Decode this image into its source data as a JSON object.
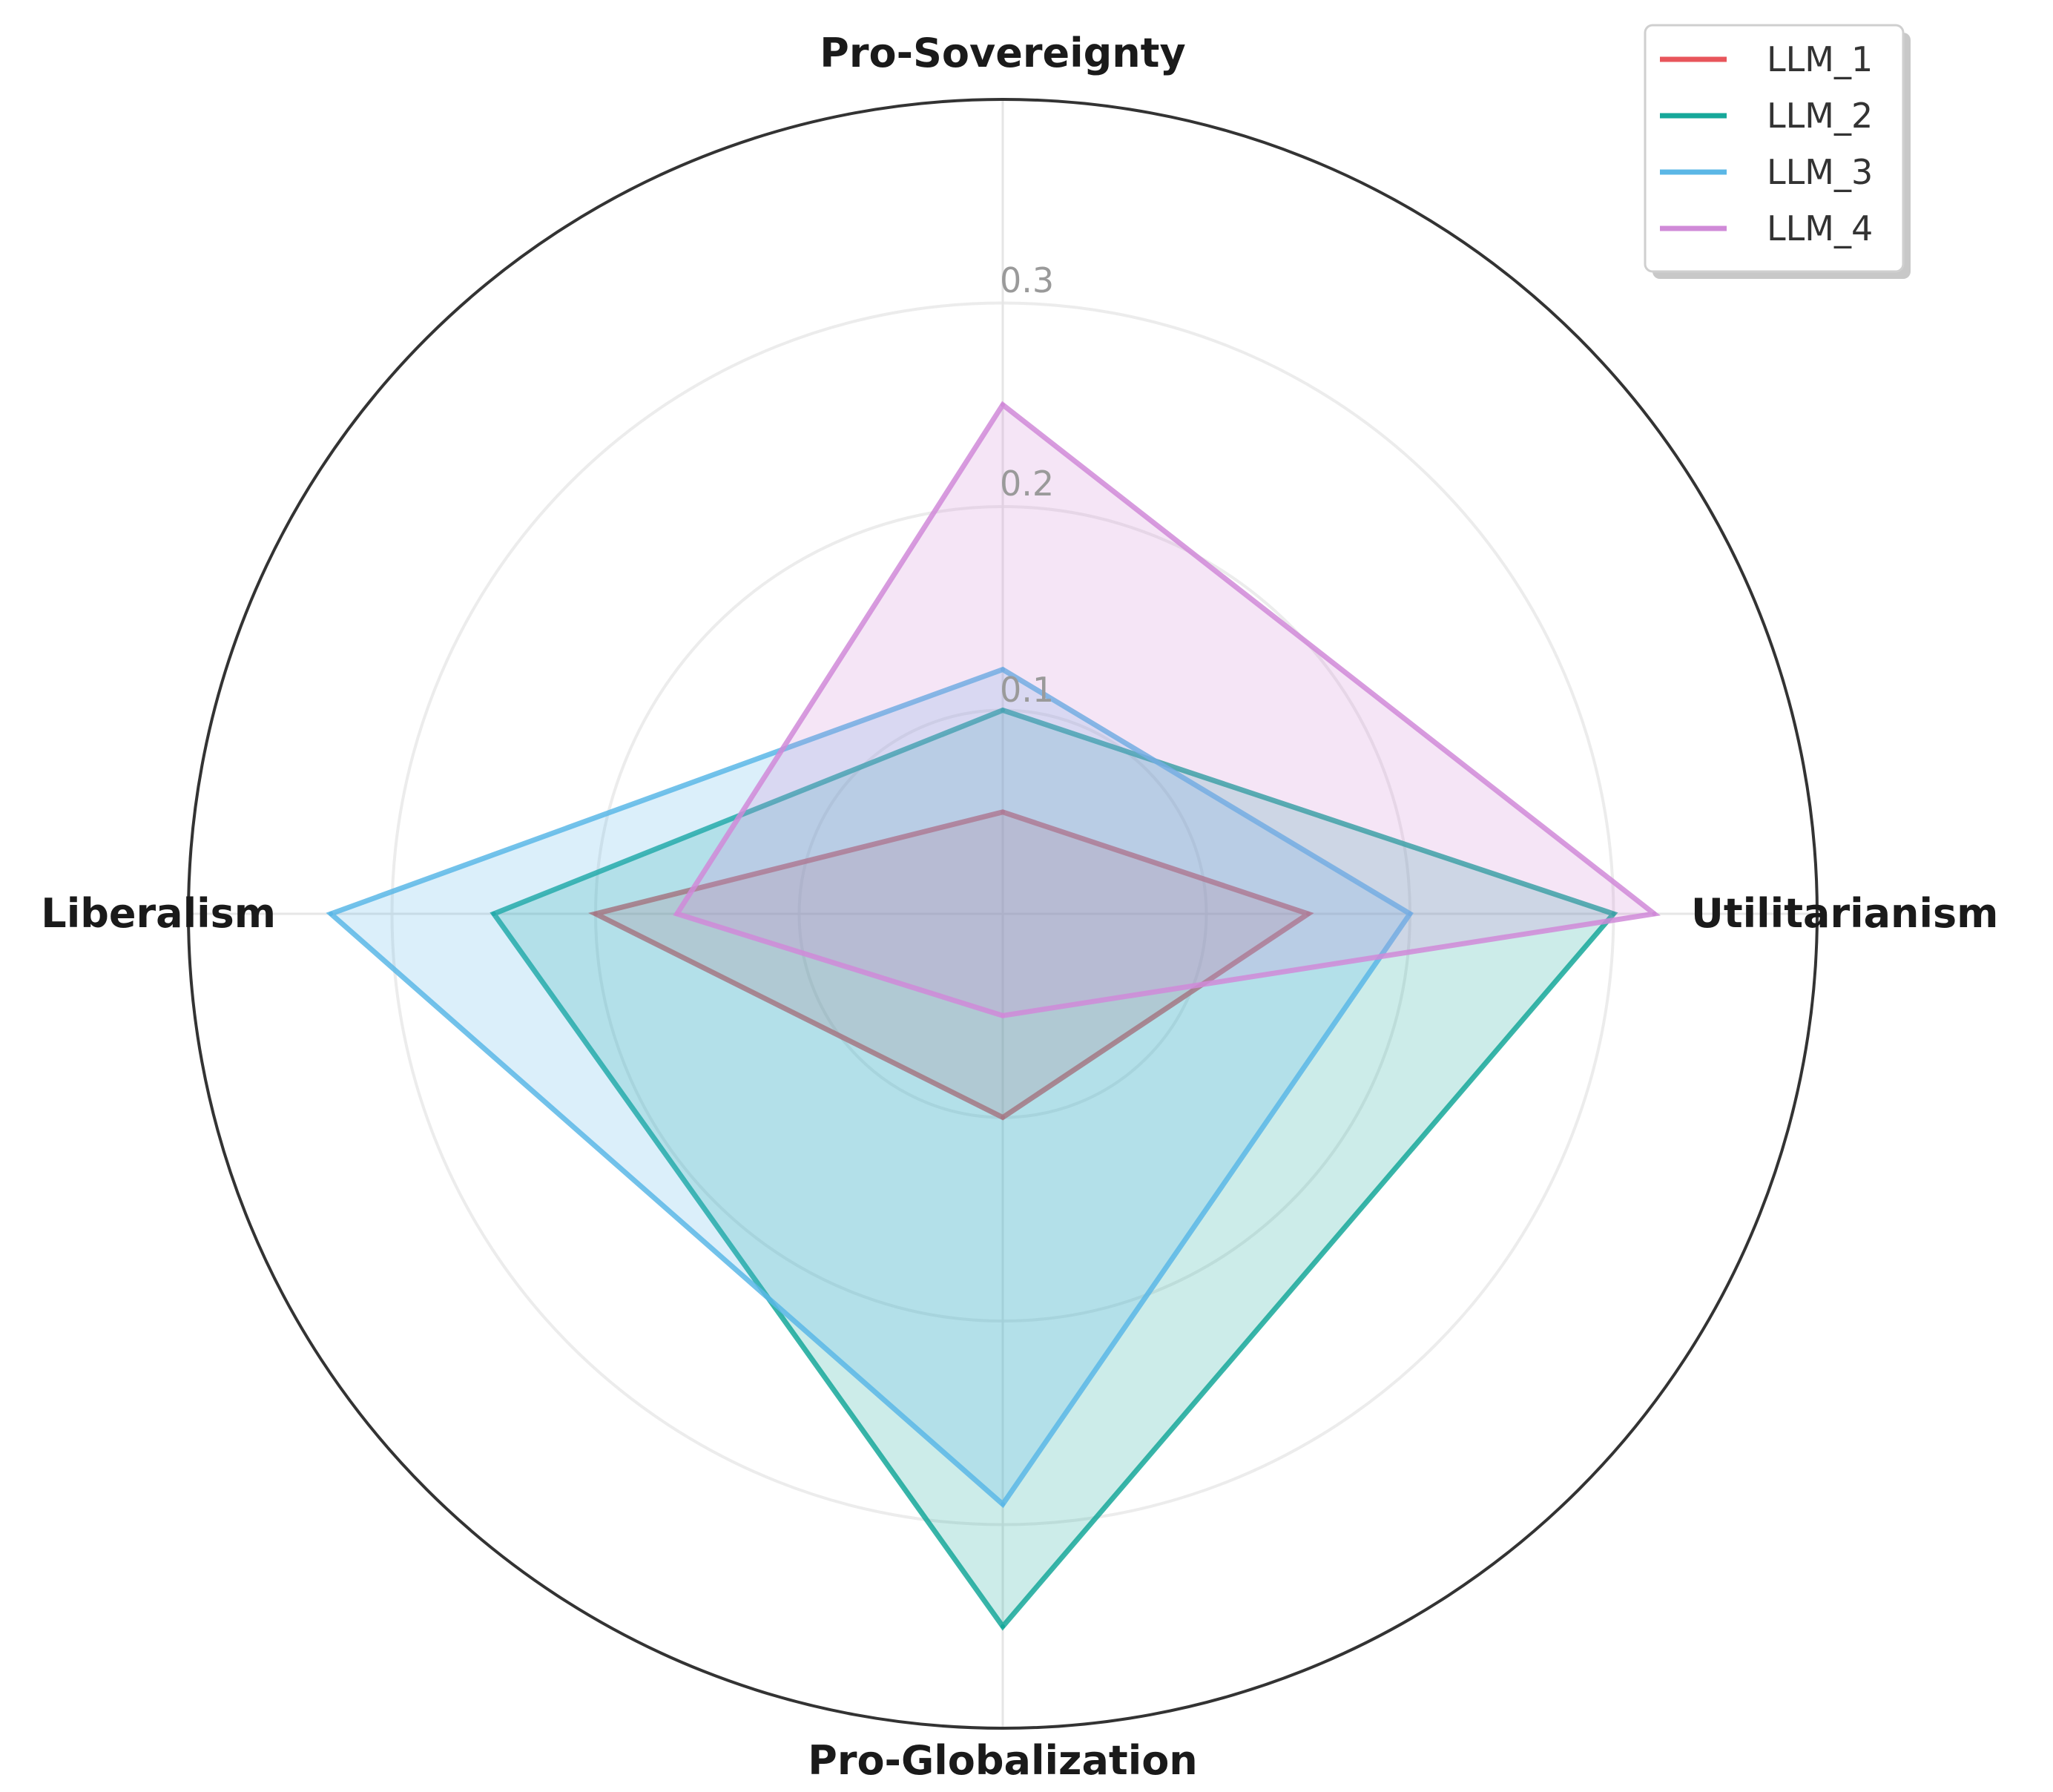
{
  "chart_data": {
    "type": "radar",
    "title": "",
    "axes": [
      "Pro-Sovereignty",
      "Utilitarianism",
      "Pro-Globalization",
      "Liberalism"
    ],
    "rlim": [
      0,
      0.4
    ],
    "rticks": [
      0.1,
      0.2,
      0.3
    ],
    "rtick_labels": [
      "0.1",
      "0.2",
      "0.3"
    ],
    "grid": true,
    "legend_position": "top-right",
    "series": [
      {
        "name": "LLM_1",
        "color": "#e8555b",
        "values": [
          0.05,
          0.15,
          0.1,
          0.2
        ]
      },
      {
        "name": "LLM_2",
        "color": "#16a89a",
        "values": [
          0.1,
          0.3,
          0.35,
          0.25
        ]
      },
      {
        "name": "LLM_3",
        "color": "#5bb7e6",
        "values": [
          0.12,
          0.2,
          0.29,
          0.33
        ]
      },
      {
        "name": "LLM_4",
        "color": "#d08ad8",
        "values": [
          0.25,
          0.32,
          0.05,
          0.16
        ]
      }
    ]
  }
}
